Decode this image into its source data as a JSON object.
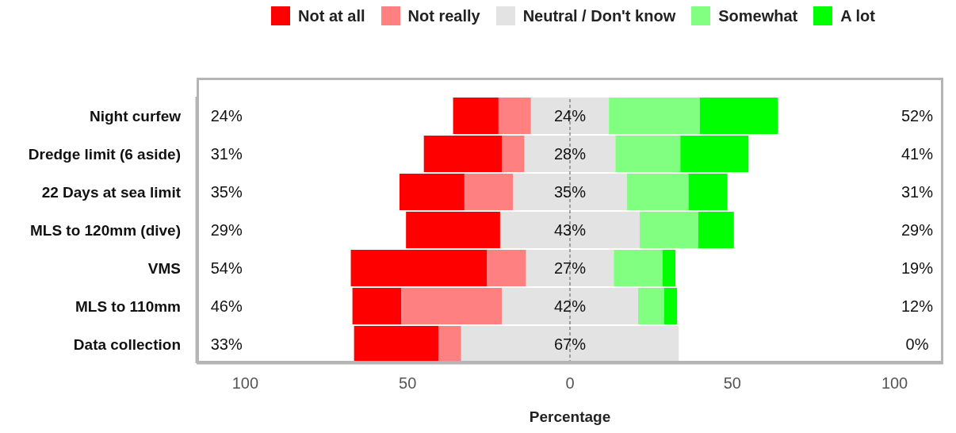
{
  "chart_data": {
    "type": "bar",
    "orientation": "horizontal",
    "xlabel": "Percentage",
    "legend": "top",
    "categories": [
      "Night curfew",
      "Dredge limit (6 aside)",
      "22 Days at sea limit",
      "MLS to 120mm (dive)",
      "VMS",
      "MLS to 110mm",
      "Data collection"
    ],
    "series": [
      {
        "name": "Not at all",
        "color": "#ff0000",
        "base": [
          -36,
          -45,
          -52.5,
          -50.5,
          -67.5,
          -67,
          -66.5
        ],
        "values": [
          14,
          24,
          20,
          29,
          42,
          15,
          26
        ]
      },
      {
        "name": "Not really",
        "color": "#ff8080",
        "base": [
          -22,
          -21,
          -32.5,
          null,
          -25.5,
          -52,
          -40.5
        ],
        "values": [
          10,
          7,
          15,
          0,
          12,
          31,
          7
        ]
      },
      {
        "name": "Neutral / Don't know",
        "color": "#e3e3e3",
        "base": [
          -12,
          -14,
          -17.5,
          -21.5,
          -13.5,
          -21,
          -33.5
        ],
        "values": [
          24,
          28,
          35,
          43,
          27,
          42,
          67
        ],
        "value_labels": [
          "24%",
          "28%",
          "35%",
          "43%",
          "27%",
          "42%",
          "67%"
        ]
      },
      {
        "name": "Somewhat",
        "color": "#80ff80",
        "base": [
          12,
          14,
          17.5,
          21.5,
          13.5,
          21,
          null
        ],
        "values": [
          28,
          20,
          19,
          18,
          15,
          8,
          0
        ]
      },
      {
        "name": "A lot",
        "color": "#00ff00",
        "base": [
          40,
          34,
          36.5,
          39.5,
          28.5,
          29,
          null
        ],
        "values": [
          24,
          21,
          12,
          11,
          4,
          4,
          0
        ]
      }
    ],
    "xlim": [
      -115,
      115
    ],
    "xticks": [
      {
        "value": -100,
        "label": "100"
      },
      {
        "value": -50,
        "label": "50"
      },
      0,
      50,
      100
    ],
    "ref_lines": [
      {
        "axis": "x",
        "value": 0,
        "color": "#555555",
        "line_style": "dashed"
      }
    ],
    "annotations": [
      "24%",
      "31%",
      "35%",
      "29%",
      "54%",
      "46%",
      "33%",
      "52%",
      "41%",
      "31%",
      "29%",
      "19%",
      "12%",
      "0%"
    ]
  }
}
